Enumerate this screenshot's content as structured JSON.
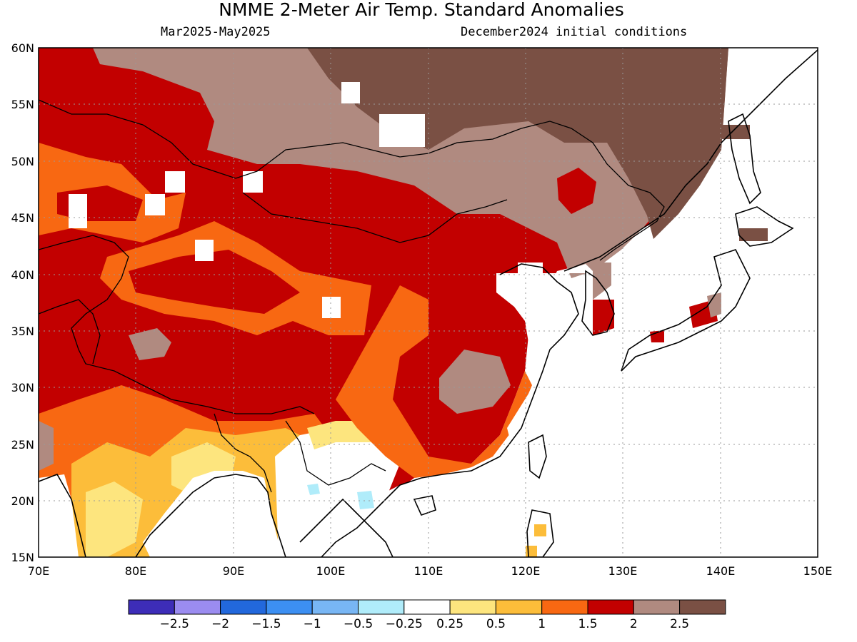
{
  "title": "NMME 2-Meter Air Temp. Standard Anomalies",
  "period": "Mar2025-May2025",
  "init": "December2024 initial conditions",
  "lat_labels": [
    "60N",
    "55N",
    "50N",
    "45N",
    "40N",
    "35N",
    "30N",
    "25N",
    "20N",
    "15N"
  ],
  "lon_labels": [
    "70E",
    "80E",
    "90E",
    "100E",
    "110E",
    "120E",
    "130E",
    "140E",
    "150E"
  ],
  "colorbar": {
    "colors": [
      "#3d2db8",
      "#9b8cf0",
      "#2268dc",
      "#3c8ff2",
      "#78b6f4",
      "#b0ecfa",
      "#ffffff",
      "#fde57e",
      "#fcbd3a",
      "#f86812",
      "#c20000",
      "#b08a80",
      "#7a5044"
    ],
    "labels": [
      "-2.5",
      "-2",
      "-1.5",
      "-1",
      "-0.5",
      "-0.25",
      "0.25",
      "0.5",
      "1",
      "1.5",
      "2",
      "2.5"
    ]
  },
  "colors": {
    "s05": "#fde57e",
    "s1": "#fcbd3a",
    "s15": "#f86812",
    "s2": "#c20000",
    "s25": "#b08a80",
    "s3": "#7a5044",
    "neg": "#b0ecfa"
  }
}
